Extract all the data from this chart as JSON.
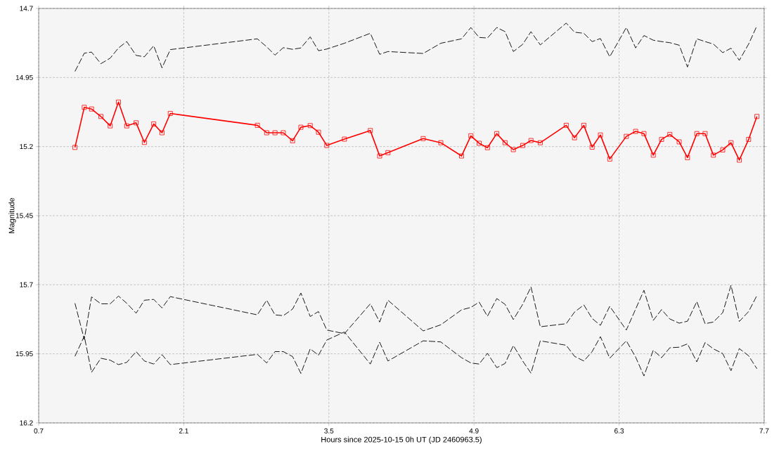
{
  "chart_data": {
    "type": "line",
    "xlabel": "Hours since 2025-10-15 0h UT (JD 2460963.5)",
    "ylabel": "Magnitude",
    "xlim": [
      0.7,
      7.7
    ],
    "xticks": [
      0.7,
      2.1,
      3.5,
      4.9,
      6.3,
      7.7
    ],
    "ylim": [
      16.2,
      14.7
    ],
    "yticks": [
      14.7,
      14.95,
      15.2,
      15.45,
      15.7,
      15.95,
      16.2
    ],
    "grid": true,
    "x": [
      1.05,
      1.14,
      1.21,
      1.3,
      1.39,
      1.47,
      1.55,
      1.64,
      1.72,
      1.81,
      1.89,
      1.97,
      2.81,
      2.9,
      2.98,
      3.06,
      3.15,
      3.23,
      3.32,
      3.4,
      3.48,
      3.65,
      3.9,
      3.99,
      4.07,
      4.41,
      4.58,
      4.78,
      4.87,
      4.95,
      5.03,
      5.12,
      5.2,
      5.28,
      5.37,
      5.45,
      5.54,
      5.79,
      5.87,
      5.96,
      6.04,
      6.12,
      6.21,
      6.37,
      6.46,
      6.54,
      6.63,
      6.71,
      6.79,
      6.88,
      6.96,
      7.05,
      7.13,
      7.21,
      7.3,
      7.38,
      7.46,
      7.55,
      7.63
    ],
    "series": [
      {
        "color": "#000000",
        "marker": "none",
        "line_style": "dashed",
        "values": [
          14.928,
          14.862,
          14.858,
          14.9,
          14.88,
          14.843,
          14.82,
          14.87,
          14.875,
          14.835,
          14.915,
          14.849,
          14.81,
          14.839,
          14.869,
          14.842,
          14.848,
          14.843,
          14.803,
          14.853,
          14.847,
          14.826,
          14.79,
          14.866,
          14.856,
          14.863,
          14.826,
          14.81,
          14.769,
          14.805,
          14.807,
          14.769,
          14.784,
          14.856,
          14.83,
          14.784,
          14.832,
          14.753,
          14.786,
          14.79,
          14.82,
          14.809,
          14.875,
          14.769,
          14.843,
          14.798,
          14.815,
          14.82,
          14.824,
          14.833,
          14.912,
          14.81,
          14.82,
          14.829,
          14.86,
          14.844,
          14.888,
          14.829,
          14.763
        ]
      },
      {
        "color": "#ff0000",
        "marker": "square",
        "line_style": "solid",
        "values": [
          15.203,
          15.058,
          15.064,
          15.091,
          15.125,
          15.039,
          15.125,
          15.114,
          15.185,
          15.118,
          15.15,
          15.08,
          15.123,
          15.15,
          15.15,
          15.15,
          15.179,
          15.13,
          15.124,
          15.148,
          15.196,
          15.173,
          15.142,
          15.234,
          15.222,
          15.171,
          15.186,
          15.234,
          15.161,
          15.188,
          15.204,
          15.153,
          15.186,
          15.211,
          15.196,
          15.178,
          15.186,
          15.123,
          15.168,
          15.123,
          15.202,
          15.158,
          15.245,
          15.163,
          15.145,
          15.153,
          15.231,
          15.174,
          15.156,
          15.183,
          15.24,
          15.153,
          15.153,
          15.231,
          15.212,
          15.186,
          15.249,
          15.174,
          15.091
        ]
      },
      {
        "color": "#000000",
        "marker": "none",
        "line_style": "dashed",
        "values": [
          15.767,
          15.898,
          15.744,
          15.769,
          15.769,
          15.741,
          15.767,
          15.803,
          15.756,
          15.753,
          15.784,
          15.743,
          15.809,
          15.756,
          15.809,
          15.812,
          15.788,
          15.73,
          15.815,
          15.797,
          15.864,
          15.877,
          15.769,
          15.835,
          15.756,
          15.867,
          15.845,
          15.791,
          15.782,
          15.763,
          15.814,
          15.75,
          15.771,
          15.826,
          15.771,
          15.708,
          15.852,
          15.841,
          15.799,
          15.773,
          15.822,
          15.847,
          15.778,
          15.864,
          15.788,
          15.72,
          15.829,
          15.79,
          15.824,
          15.839,
          15.832,
          15.761,
          15.841,
          15.835,
          15.801,
          15.702,
          15.833,
          15.797,
          15.739
        ]
      },
      {
        "color": "#000000",
        "marker": "none",
        "line_style": "dashed",
        "values": [
          15.959,
          15.886,
          16.017,
          15.966,
          15.973,
          15.989,
          15.981,
          15.942,
          15.976,
          15.987,
          15.953,
          15.989,
          15.952,
          15.983,
          15.942,
          15.942,
          15.96,
          16.021,
          15.932,
          15.955,
          15.9,
          15.871,
          15.987,
          15.908,
          15.976,
          15.903,
          15.907,
          15.964,
          15.983,
          15.987,
          15.948,
          16.0,
          15.985,
          15.92,
          15.976,
          16.02,
          15.903,
          15.919,
          15.959,
          15.976,
          15.942,
          15.888,
          15.966,
          15.903,
          15.962,
          16.03,
          15.937,
          15.964,
          15.928,
          15.926,
          15.914,
          15.979,
          15.909,
          15.932,
          15.949,
          16.011,
          15.931,
          15.957,
          16.004
        ]
      }
    ]
  }
}
